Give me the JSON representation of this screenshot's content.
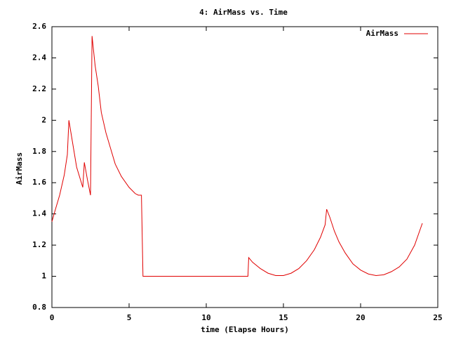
{
  "chart_data": {
    "type": "line",
    "title": "4: AirMass vs. Time",
    "x_label": "time (Elapse Hours)",
    "y_label": "AirMass",
    "x": [
      0,
      0.2,
      0.5,
      0.8,
      1.0,
      1.1,
      1.3,
      1.6,
      2.0,
      2.1,
      2.3,
      2.5,
      2.6,
      2.8,
      3.0,
      3.2,
      3.5,
      3.8,
      4.1,
      4.5,
      5.0,
      5.4,
      5.6,
      5.8,
      5.9,
      12.7,
      12.75,
      13.0,
      13.5,
      14.0,
      14.5,
      15.0,
      15.5,
      16.0,
      16.5,
      17.0,
      17.4,
      17.7,
      17.8,
      18.0,
      18.3,
      18.6,
      19.0,
      19.5,
      20.0,
      20.5,
      21.0,
      21.5,
      22.0,
      22.5,
      23.0,
      23.5,
      24.0
    ],
    "series": [
      {
        "name": "AirMass",
        "color": "#e00000",
        "values": [
          1.35,
          1.42,
          1.52,
          1.65,
          1.78,
          2.0,
          1.88,
          1.7,
          1.57,
          1.73,
          1.62,
          1.52,
          2.54,
          2.35,
          2.22,
          2.05,
          1.92,
          1.82,
          1.72,
          1.64,
          1.57,
          1.53,
          1.52,
          1.52,
          1.0,
          1.0,
          1.12,
          1.09,
          1.05,
          1.02,
          1.005,
          1.005,
          1.02,
          1.05,
          1.1,
          1.17,
          1.25,
          1.33,
          1.43,
          1.38,
          1.29,
          1.22,
          1.15,
          1.08,
          1.04,
          1.015,
          1.005,
          1.01,
          1.03,
          1.06,
          1.11,
          1.2,
          1.34
        ]
      }
    ],
    "xlim": [
      0,
      25
    ],
    "xticks": [
      0,
      5,
      10,
      15,
      20,
      25
    ],
    "ylim": [
      0.8,
      2.6
    ],
    "yticks": [
      0.8,
      1,
      1.2,
      1.4,
      1.6,
      1.8,
      2,
      2.2,
      2.4,
      2.6
    ],
    "legend": "upper right",
    "grid": false
  }
}
